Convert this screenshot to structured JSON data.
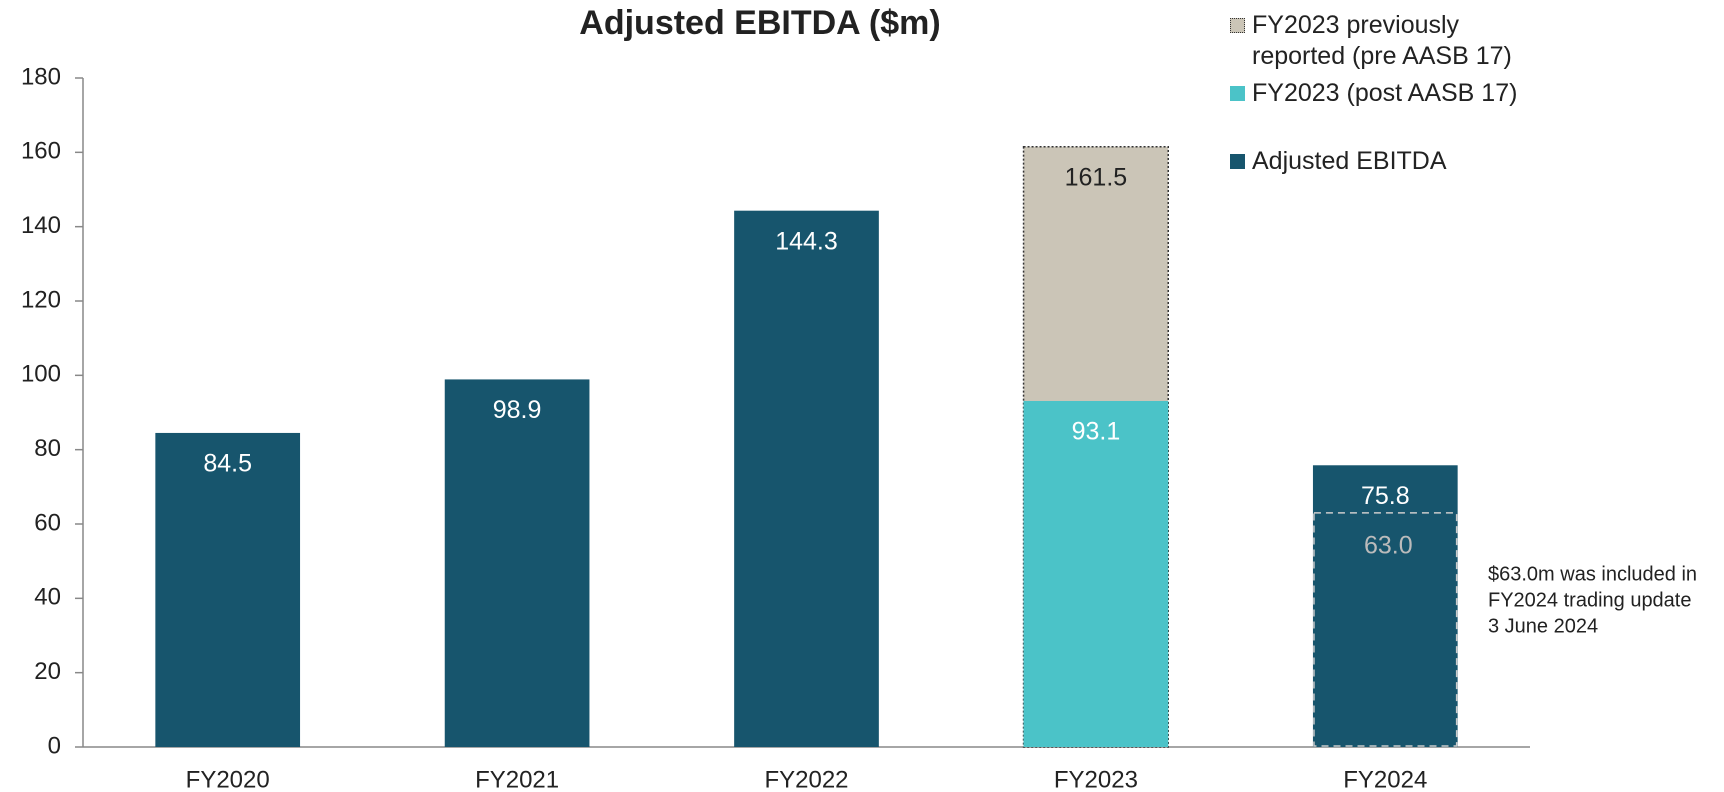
{
  "chart_data": {
    "type": "bar",
    "title": "Adjusted EBITDA ($m)",
    "categories": [
      "FY2020",
      "FY2021",
      "FY2022",
      "FY2023",
      "FY2024"
    ],
    "series": [
      {
        "name": "FY2023 previously reported (pre AASB 17)",
        "color": "#cbc5b7",
        "values": [
          null,
          null,
          null,
          161.5,
          null
        ]
      },
      {
        "name": "FY2023 (post AASB 17)",
        "color": "#4bc3c8",
        "values": [
          null,
          null,
          null,
          93.1,
          null
        ]
      },
      {
        "name": "Adjusted EBITDA",
        "color": "#17556d",
        "values": [
          84.5,
          98.9,
          144.3,
          null,
          75.8
        ]
      }
    ],
    "annotation": {
      "text": [
        "$63.0m was included in",
        "FY2024 trading update",
        "3 June 2024"
      ],
      "values": [
        null,
        null,
        null,
        null,
        63
      ],
      "value_labels": [
        null,
        null,
        null,
        null,
        "63.0"
      ]
    },
    "ylim": [
      0,
      180
    ],
    "yticks": [
      0,
      20,
      40,
      60,
      80,
      100,
      120,
      140,
      160,
      180
    ]
  }
}
